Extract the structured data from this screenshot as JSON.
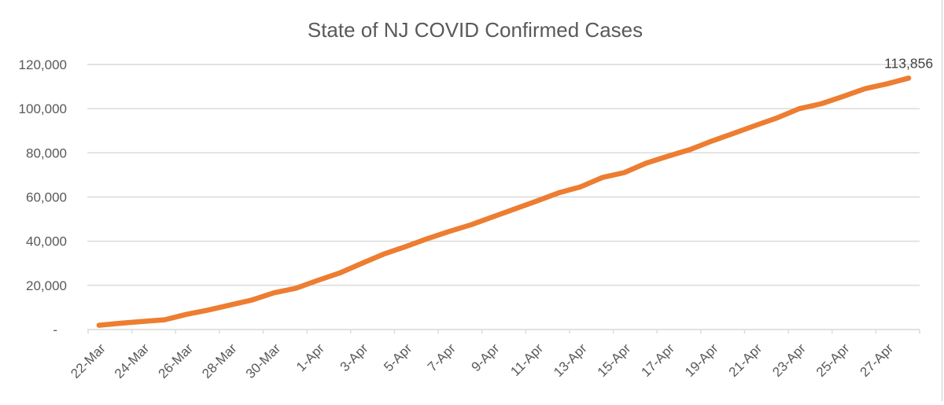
{
  "chart_data": {
    "type": "line",
    "title": "State of NJ COVID Confirmed Cases",
    "xlabel": "",
    "ylabel": "",
    "ylim": [
      0,
      120000
    ],
    "y_tick_step": 20000,
    "y_tick_labels": [
      "-",
      "20,000",
      "40,000",
      "60,000",
      "80,000",
      "100,000",
      "120,000"
    ],
    "x_tick_label_interval": 2,
    "grid": true,
    "legend": "none",
    "categories": [
      "22-Mar",
      "23-Mar",
      "24-Mar",
      "25-Mar",
      "26-Mar",
      "27-Mar",
      "28-Mar",
      "29-Mar",
      "30-Mar",
      "31-Mar",
      "1-Apr",
      "2-Apr",
      "3-Apr",
      "4-Apr",
      "5-Apr",
      "6-Apr",
      "7-Apr",
      "8-Apr",
      "9-Apr",
      "10-Apr",
      "11-Apr",
      "12-Apr",
      "13-Apr",
      "14-Apr",
      "15-Apr",
      "16-Apr",
      "17-Apr",
      "18-Apr",
      "19-Apr",
      "20-Apr",
      "21-Apr",
      "22-Apr",
      "23-Apr",
      "24-Apr",
      "25-Apr",
      "26-Apr",
      "27-Apr",
      "28-Apr"
    ],
    "series": [
      {
        "name": "NJ COVID Confirmed Cases",
        "values": [
          1914,
          2844,
          3675,
          4402,
          6876,
          8825,
          11124,
          13386,
          16636,
          18696,
          22255,
          25590,
          29895,
          34124,
          37505,
          41090,
          44416,
          47437,
          51027,
          54588,
          58151,
          61850,
          64584,
          68824,
          71030,
          75317,
          78467,
          81420,
          85301,
          88806,
          92387,
          95865,
          99989,
          102196,
          105523,
          109038,
          111188,
          113856
        ]
      }
    ],
    "end_label": "113,856",
    "colors": {
      "line": "#ED7D31",
      "gridline": "#D9D9D9",
      "axis_line": "#D9D9D9",
      "axis_text": "#595959",
      "title_text": "#595959",
      "data_label_text": "#3F3F3F",
      "background": "#FFFFFF"
    }
  }
}
